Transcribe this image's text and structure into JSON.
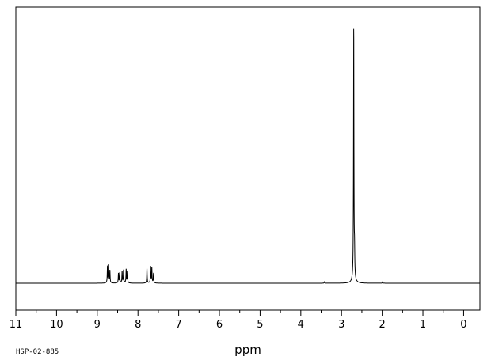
{
  "chart_data": {
    "type": "line",
    "xlabel": "ppm",
    "xlim": [
      11,
      -0.4
    ],
    "x_reversed": true,
    "x_ticks": [
      11,
      10,
      9,
      8,
      7,
      6,
      5,
      4,
      3,
      2,
      1,
      0
    ],
    "x_minor_tick_step": 0.5,
    "ylim": [
      0,
      1.1
    ],
    "grid": false,
    "legend": "none",
    "line_color": "#000000",
    "sample_id": "HSP-02-885",
    "peaks": [
      {
        "ppm": 8.75,
        "height": 0.065
      },
      {
        "ppm": 8.72,
        "height": 0.068
      },
      {
        "ppm": 8.69,
        "height": 0.048
      },
      {
        "ppm": 8.48,
        "height": 0.038
      },
      {
        "ppm": 8.45,
        "height": 0.04
      },
      {
        "ppm": 8.39,
        "height": 0.046
      },
      {
        "ppm": 8.355,
        "height": 0.05
      },
      {
        "ppm": 8.29,
        "height": 0.054
      },
      {
        "ppm": 8.26,
        "height": 0.046
      },
      {
        "ppm": 7.78,
        "height": 0.058
      },
      {
        "ppm": 7.69,
        "height": 0.064
      },
      {
        "ppm": 7.66,
        "height": 0.06
      },
      {
        "ppm": 7.62,
        "height": 0.035
      },
      {
        "ppm": 3.42,
        "height": 0.006
      },
      {
        "ppm": 2.7,
        "height": 1.0
      },
      {
        "ppm": 2.68,
        "height": 0.09
      },
      {
        "ppm": 1.99,
        "height": 0.006
      }
    ]
  }
}
